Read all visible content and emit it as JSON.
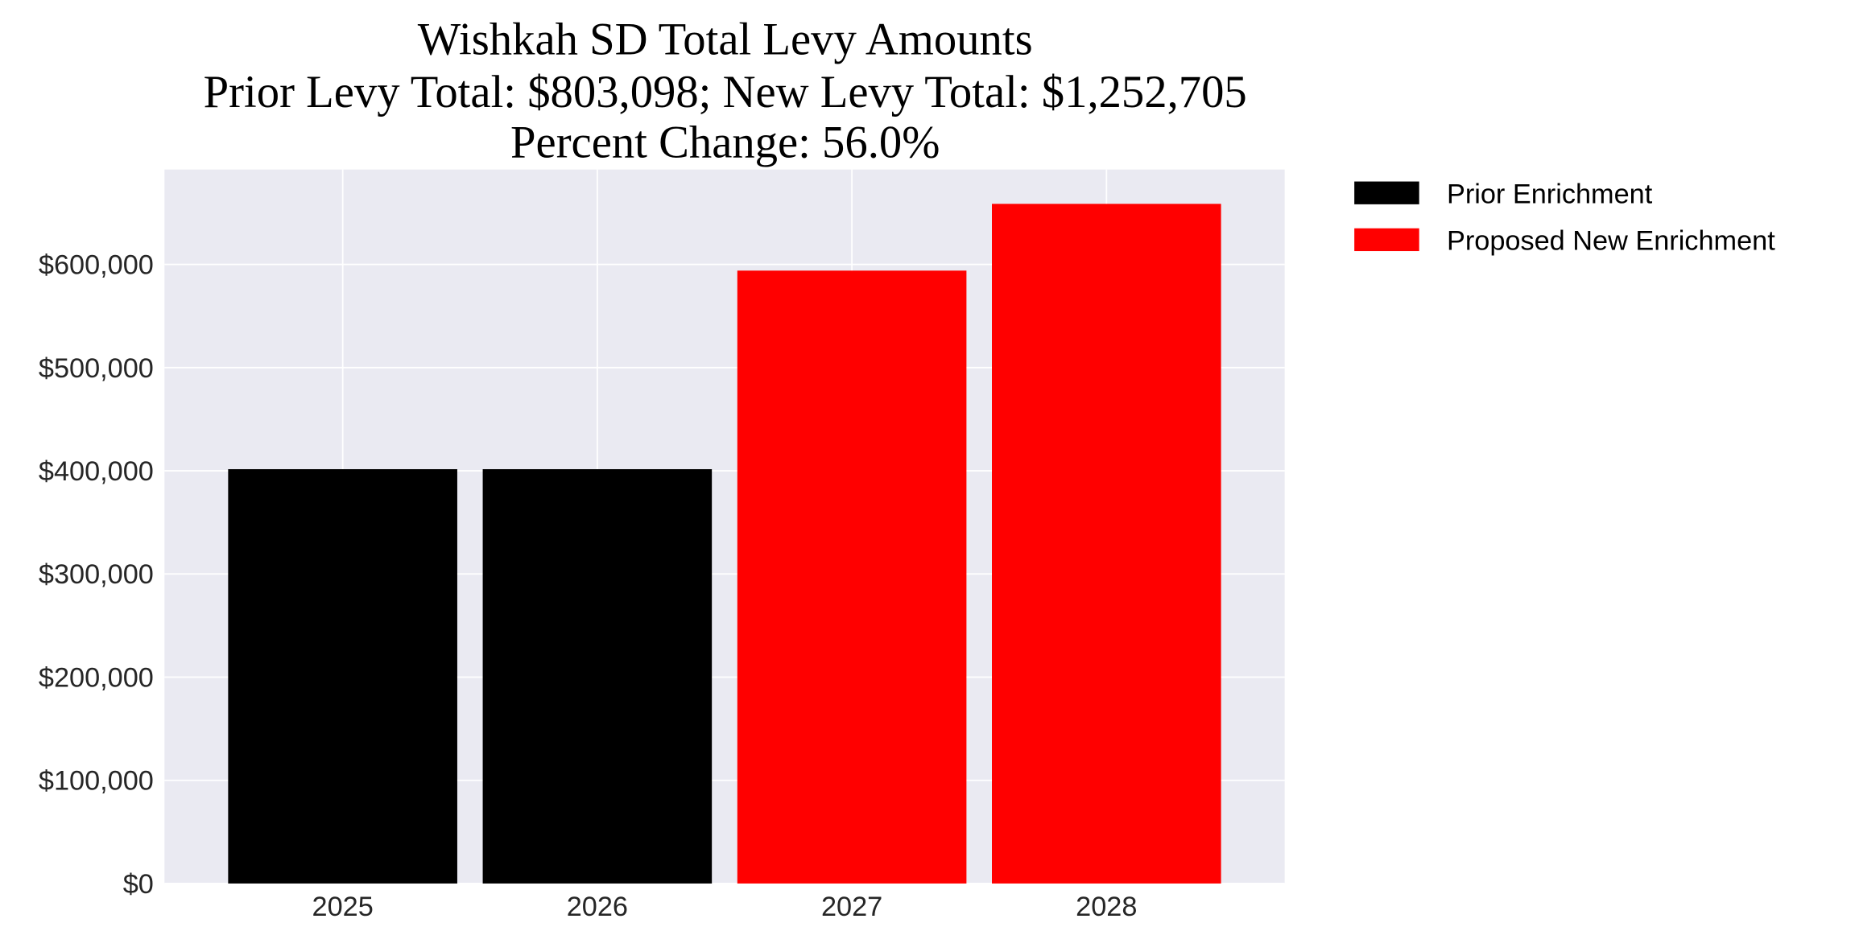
{
  "chart_data": {
    "type": "bar",
    "title_lines": [
      "Wishkah SD Total Levy Amounts",
      "Prior Levy Total:  $803,098; New Levy Total: $1,252,705",
      "Percent Change: 56.0%"
    ],
    "categories": [
      "2025",
      "2026",
      "2027",
      "2028"
    ],
    "values": [
      401549,
      401549,
      594000,
      658705
    ],
    "bar_series": [
      "Prior Enrichment",
      "Prior Enrichment",
      "Proposed New Enrichment",
      "Proposed New Enrichment"
    ],
    "series": [
      {
        "name": "Prior Enrichment",
        "color": "#000000"
      },
      {
        "name": "Proposed New Enrichment",
        "color": "#ff0000"
      }
    ],
    "xlabel": "",
    "ylabel": "",
    "ylim": [
      0,
      692000
    ],
    "yticks": [
      0,
      100000,
      200000,
      300000,
      400000,
      500000,
      600000
    ],
    "ytick_labels": [
      "$0",
      "$100,000",
      "$200,000",
      "$300,000",
      "$400,000",
      "$500,000",
      "$600,000"
    ],
    "grid": true,
    "plot_background": "#eaeaf2",
    "legend_placement": "outside-right-top"
  }
}
